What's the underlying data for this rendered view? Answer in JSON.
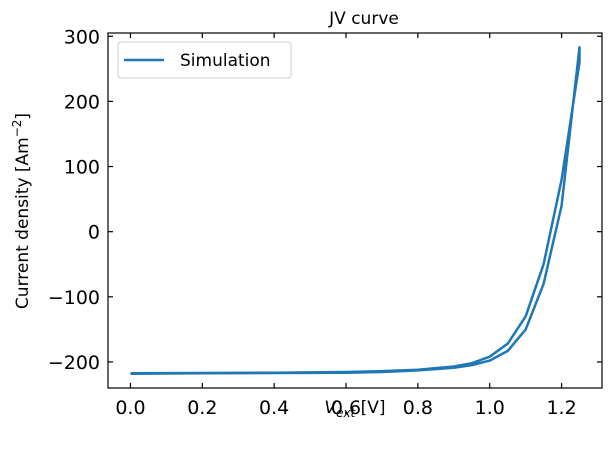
{
  "chart_data": {
    "type": "line",
    "title": "JV curve",
    "xlabel": {
      "main": "V",
      "sub": "ext",
      "unit": " [V]"
    },
    "ylabel": {
      "main": "Current density [Am",
      "sup": "−2",
      "end": "]"
    },
    "xlim": [
      -0.0625,
      1.3125
    ],
    "ylim": [
      -240,
      305
    ],
    "xticks": [
      0.0,
      0.2,
      0.4,
      0.6,
      0.8,
      1.0,
      1.2
    ],
    "xtick_labels": [
      "0.0",
      "0.2",
      "0.4",
      "0.6",
      "0.8",
      "1.0",
      "1.2"
    ],
    "yticks": [
      -200,
      -100,
      0,
      100,
      200,
      300
    ],
    "ytick_labels": [
      "−200",
      "−100",
      "0",
      "100",
      "200",
      "300"
    ],
    "grid": false,
    "legend": {
      "position": "top-left",
      "entries": [
        "Simulation"
      ]
    },
    "colors": {
      "series": "#1f77b4"
    },
    "series": [
      {
        "name": "Simulation",
        "x": [
          0.0,
          0.2,
          0.4,
          0.6,
          0.7,
          0.8,
          0.9,
          0.95,
          1.0,
          1.05,
          1.1,
          1.15,
          1.2,
          1.25,
          1.25,
          1.2,
          1.15,
          1.1,
          1.05,
          1.0,
          0.95,
          0.9,
          0.8,
          0.7,
          0.6,
          0.4,
          0.2,
          0.0
        ],
        "y": [
          -218,
          -217.5,
          -217,
          -216.5,
          -215.5,
          -213,
          -209,
          -205,
          -198,
          -183,
          -150,
          -80,
          40,
          283,
          260,
          80,
          -50,
          -130,
          -172,
          -192,
          -202,
          -207,
          -212,
          -214,
          -215.5,
          -216.5,
          -217,
          -217.5
        ]
      }
    ]
  }
}
